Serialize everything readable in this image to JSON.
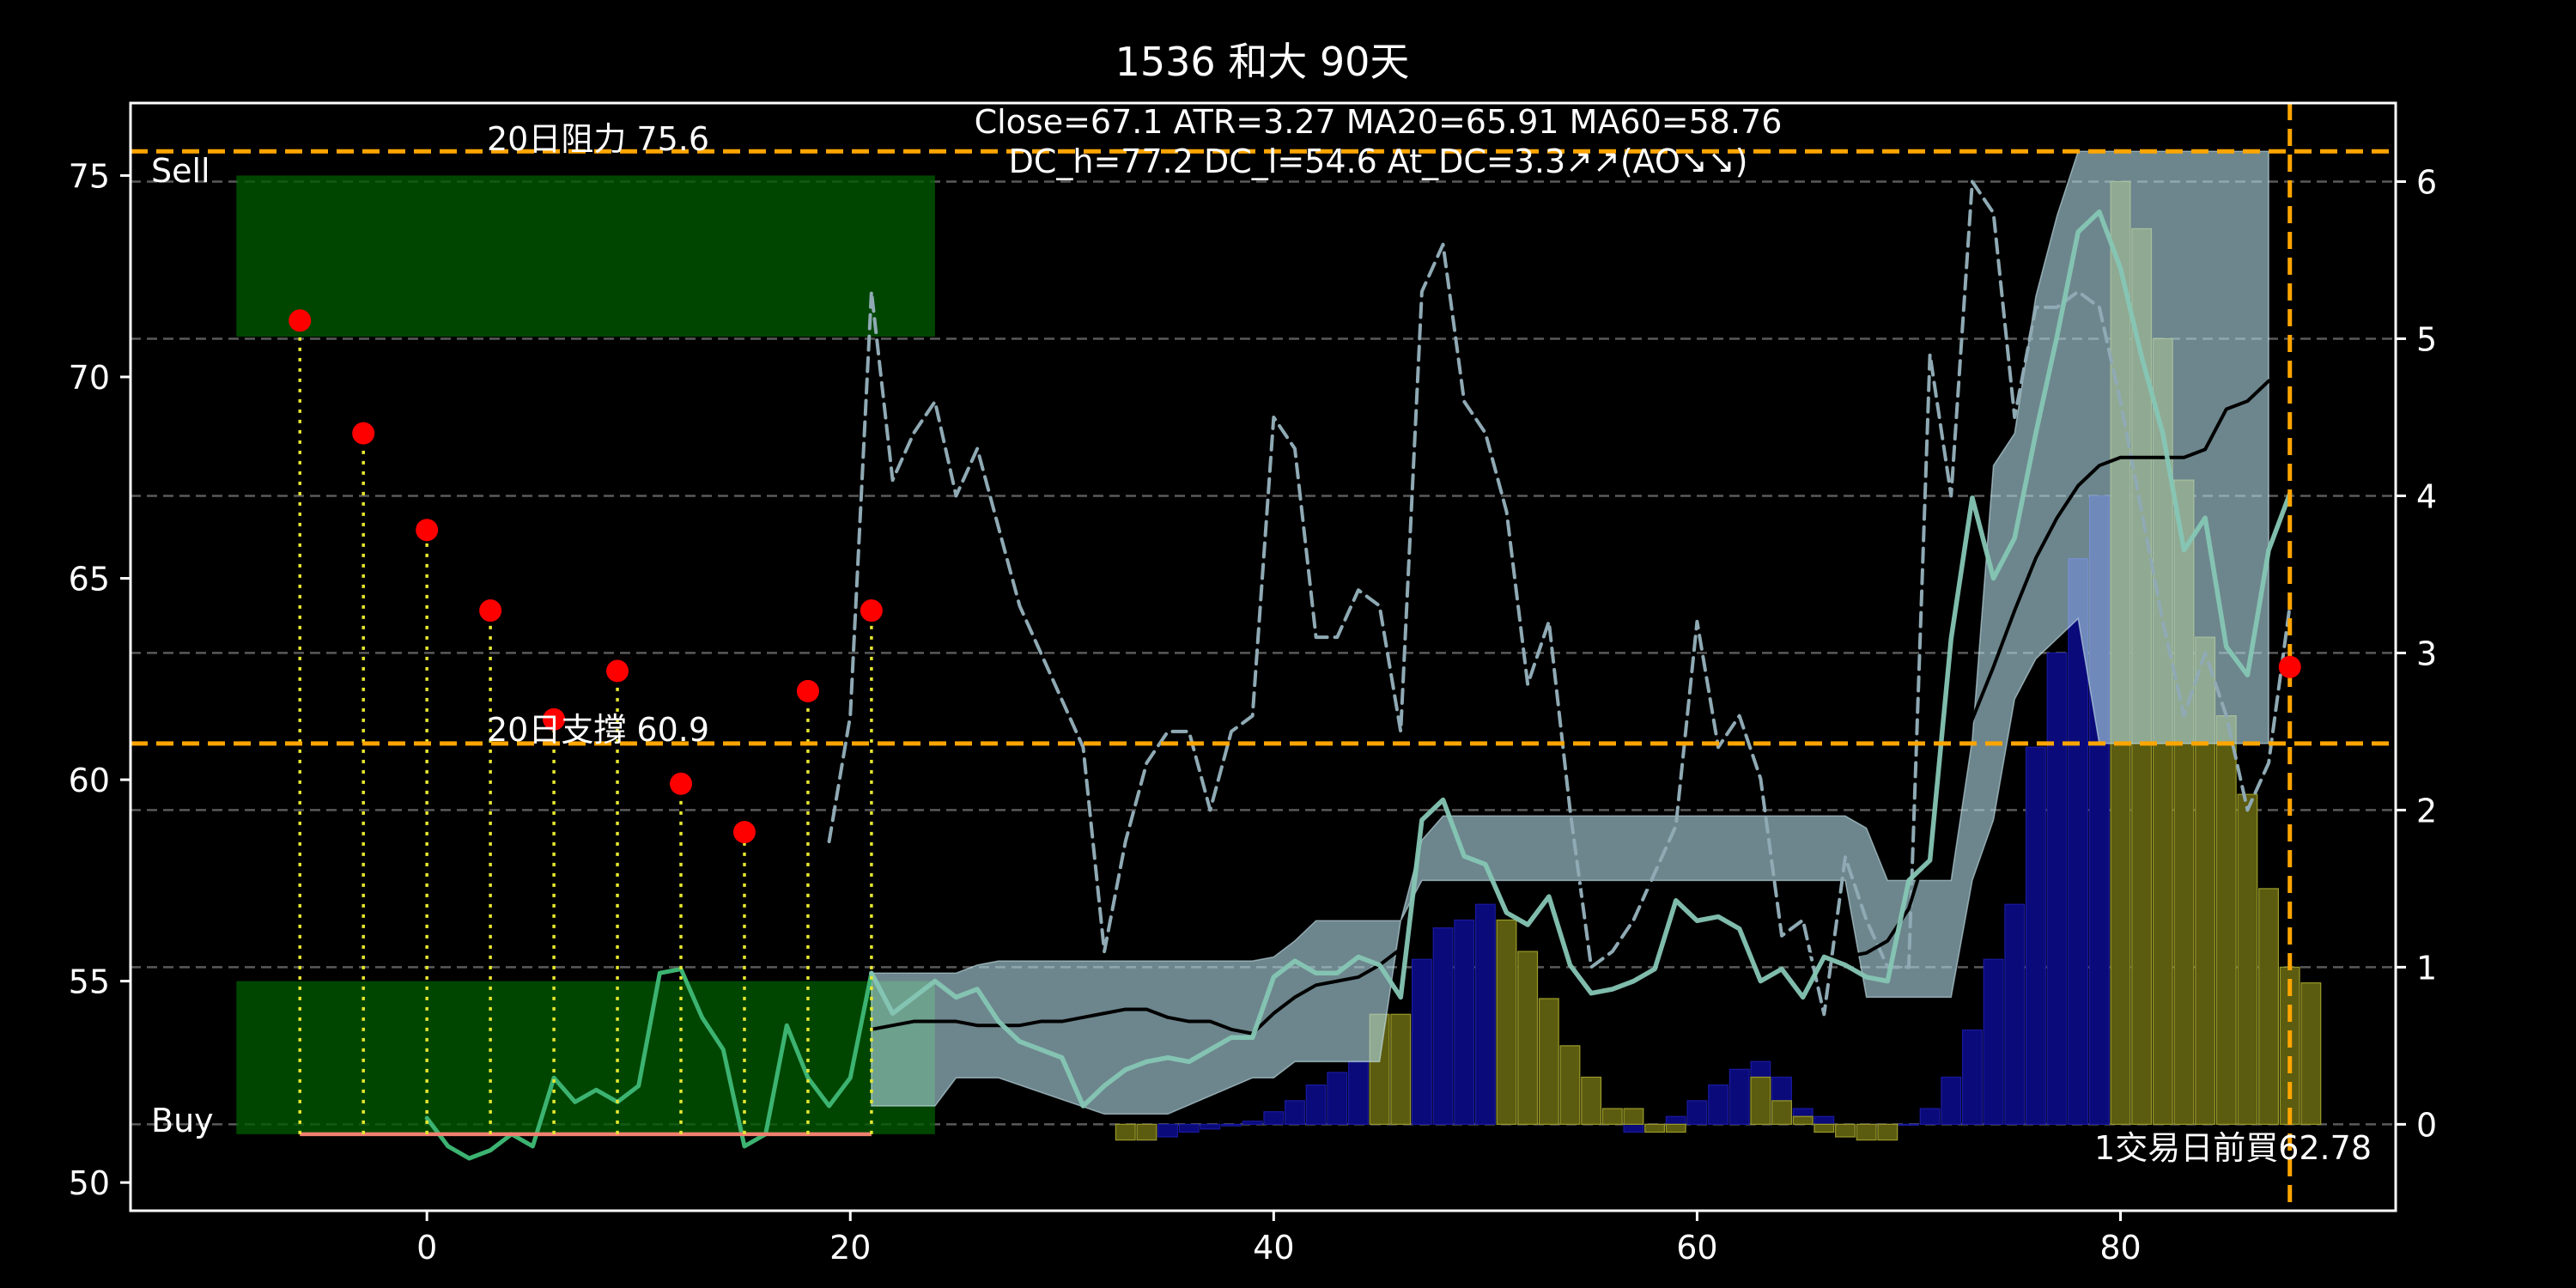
{
  "chart_data": {
    "type": "line",
    "title": "1536 和大 90天",
    "subtitle_lines": [
      "Close=67.1 ATR=3.27 MA20=65.91 MA60=58.76",
      "DC_h=77.2 DC_l=54.6 At_DC=3.3↗↗(AO↘↘)"
    ],
    "xlim": [
      -14,
      93
    ],
    "ylim_left": [
      49.3,
      76.8
    ],
    "ylim_right": [
      -0.55,
      6.5
    ],
    "x_ticks": [
      0,
      20,
      40,
      60,
      80
    ],
    "y_ticks_left": [
      50,
      55,
      60,
      65,
      70,
      75
    ],
    "y_ticks_right": [
      0,
      1,
      2,
      3,
      4,
      5,
      6
    ],
    "right_grid": [
      0,
      1,
      2,
      3,
      4,
      5,
      6
    ],
    "sell_zone": {
      "label": "Sell",
      "x": [
        -9,
        24
      ],
      "y": [
        71,
        75
      ]
    },
    "buy_zone": {
      "label": "Buy",
      "x": [
        -9,
        24
      ],
      "y": [
        51.2,
        55
      ]
    },
    "resistance": {
      "value": 75.6,
      "label": "20日阻力 75.6"
    },
    "support": {
      "value": 60.9,
      "label": "20日支撐 60.9"
    },
    "current_x": 88,
    "last_point": {
      "x": 88,
      "y": 62.8
    },
    "footnote": "1交易日前買62.78",
    "stems_base": 51.2,
    "stems_color": "#e8e830",
    "stems": [
      [
        -6,
        71.4
      ],
      [
        -3,
        68.6
      ],
      [
        0,
        66.2
      ],
      [
        3,
        64.2
      ],
      [
        6,
        61.5
      ],
      [
        9,
        62.7
      ],
      [
        12,
        59.9
      ],
      [
        15,
        58.7
      ],
      [
        18,
        62.2
      ],
      [
        21,
        64.2
      ]
    ],
    "red_base_line": {
      "x": [
        -6,
        21
      ],
      "y": 51.2,
      "color": "#f08070"
    },
    "green_line": {
      "color": "#3cb371",
      "points": [
        [
          0,
          51.6
        ],
        [
          1,
          50.9
        ],
        [
          2,
          50.6
        ],
        [
          3,
          50.8
        ],
        [
          4,
          51.2
        ],
        [
          5,
          50.9
        ],
        [
          6,
          52.6
        ],
        [
          7,
          52.0
        ],
        [
          8,
          52.3
        ],
        [
          9,
          52.0
        ],
        [
          10,
          52.4
        ],
        [
          11,
          55.2
        ],
        [
          12,
          55.3
        ],
        [
          13,
          54.1
        ],
        [
          14,
          53.3
        ],
        [
          15,
          50.9
        ],
        [
          16,
          51.2
        ],
        [
          17,
          53.9
        ],
        [
          18,
          52.6
        ],
        [
          19,
          51.9
        ],
        [
          20,
          52.6
        ],
        [
          21,
          55.2
        ]
      ]
    },
    "dc_band": {
      "color": "#b0d8e4",
      "alpha": 0.62,
      "points": [
        [
          21,
          55.2,
          51.9
        ],
        [
          22,
          55.2,
          51.9
        ],
        [
          24,
          55.2,
          51.9
        ],
        [
          25,
          55.2,
          52.6
        ],
        [
          26,
          55.4,
          52.6
        ],
        [
          27,
          55.5,
          52.6
        ],
        [
          32,
          55.5,
          51.7
        ],
        [
          35,
          55.5,
          51.7
        ],
        [
          39,
          55.5,
          52.6
        ],
        [
          40,
          55.6,
          52.6
        ],
        [
          41,
          56.0,
          53.0
        ],
        [
          42,
          56.5,
          53.0
        ],
        [
          45,
          56.5,
          53.0
        ],
        [
          46,
          56.5,
          56.5
        ],
        [
          47,
          58.5,
          57.5
        ],
        [
          48,
          59.1,
          57.5
        ],
        [
          55,
          59.1,
          57.5
        ],
        [
          67,
          59.1,
          57.5
        ],
        [
          68,
          58.8,
          54.6
        ],
        [
          69,
          57.5,
          54.6
        ],
        [
          72,
          57.5,
          54.6
        ],
        [
          73,
          61.0,
          57.5
        ],
        [
          74,
          67.8,
          59.0
        ],
        [
          75,
          68.6,
          62.0
        ],
        [
          76,
          72.0,
          63.0
        ],
        [
          77,
          74.0,
          63.5
        ],
        [
          78,
          75.6,
          64.0
        ],
        [
          79,
          75.6,
          60.9
        ],
        [
          86,
          75.6,
          60.9
        ],
        [
          87,
          75.6,
          60.9
        ]
      ]
    },
    "ma_line": {
      "color": "#000000",
      "points": [
        [
          21,
          53.8
        ],
        [
          22,
          53.9
        ],
        [
          23,
          54.0
        ],
        [
          24,
          54.0
        ],
        [
          25,
          54.0
        ],
        [
          26,
          53.9
        ],
        [
          27,
          53.9
        ],
        [
          28,
          53.9
        ],
        [
          29,
          54.0
        ],
        [
          30,
          54.0
        ],
        [
          31,
          54.1
        ],
        [
          32,
          54.2
        ],
        [
          33,
          54.3
        ],
        [
          34,
          54.3
        ],
        [
          35,
          54.1
        ],
        [
          36,
          54.0
        ],
        [
          37,
          54.0
        ],
        [
          38,
          53.8
        ],
        [
          39,
          53.7
        ],
        [
          40,
          54.2
        ],
        [
          41,
          54.6
        ],
        [
          42,
          54.9
        ],
        [
          43,
          55.0
        ],
        [
          44,
          55.1
        ],
        [
          45,
          55.4
        ],
        [
          46,
          55.8
        ],
        [
          47,
          56.6
        ],
        [
          48,
          56.9
        ],
        [
          49,
          57.0
        ],
        [
          50,
          57.1
        ],
        [
          51,
          57.1
        ],
        [
          52,
          57.1
        ],
        [
          53,
          57.2
        ],
        [
          54,
          57.3
        ],
        [
          55,
          57.4
        ],
        [
          56,
          57.4
        ],
        [
          57,
          57.4
        ],
        [
          58,
          57.3
        ],
        [
          59,
          57.3
        ],
        [
          60,
          57.2
        ],
        [
          61,
          56.9
        ],
        [
          62,
          56.2
        ],
        [
          63,
          55.8
        ],
        [
          64,
          55.8
        ],
        [
          65,
          55.7
        ],
        [
          66,
          55.6
        ],
        [
          67,
          55.6
        ],
        [
          68,
          55.7
        ],
        [
          69,
          56.0
        ],
        [
          70,
          56.8
        ],
        [
          71,
          58.5
        ],
        [
          72,
          60.0
        ],
        [
          73,
          61.5
        ],
        [
          74,
          62.8
        ],
        [
          75,
          64.2
        ],
        [
          76,
          65.5
        ],
        [
          77,
          66.5
        ],
        [
          78,
          67.3
        ],
        [
          79,
          67.8
        ],
        [
          80,
          68.0
        ],
        [
          81,
          68.0
        ],
        [
          82,
          68.0
        ],
        [
          83,
          68.0
        ],
        [
          84,
          68.2
        ],
        [
          85,
          69.2
        ],
        [
          86,
          69.4
        ],
        [
          87,
          69.9
        ]
      ]
    },
    "teal_line": {
      "color": "#86c6b4",
      "points": [
        [
          21,
          55.2
        ],
        [
          22,
          54.2
        ],
        [
          23,
          54.6
        ],
        [
          24,
          55.0
        ],
        [
          25,
          54.6
        ],
        [
          26,
          54.8
        ],
        [
          27,
          54.0
        ],
        [
          28,
          53.5
        ],
        [
          29,
          53.3
        ],
        [
          30,
          53.1
        ],
        [
          31,
          51.9
        ],
        [
          32,
          52.4
        ],
        [
          33,
          52.8
        ],
        [
          34,
          53.0
        ],
        [
          35,
          53.1
        ],
        [
          36,
          53.0
        ],
        [
          37,
          53.3
        ],
        [
          38,
          53.6
        ],
        [
          39,
          53.6
        ],
        [
          40,
          55.1
        ],
        [
          41,
          55.5
        ],
        [
          42,
          55.2
        ],
        [
          43,
          55.2
        ],
        [
          44,
          55.6
        ],
        [
          45,
          55.4
        ],
        [
          46,
          54.6
        ],
        [
          47,
          59.0
        ],
        [
          48,
          59.5
        ],
        [
          49,
          58.1
        ],
        [
          50,
          57.9
        ],
        [
          51,
          56.7
        ],
        [
          52,
          56.4
        ],
        [
          53,
          57.1
        ],
        [
          54,
          55.4
        ],
        [
          55,
          54.7
        ],
        [
          56,
          54.8
        ],
        [
          57,
          55.0
        ],
        [
          58,
          55.3
        ],
        [
          59,
          57.0
        ],
        [
          60,
          56.5
        ],
        [
          61,
          56.6
        ],
        [
          62,
          56.3
        ],
        [
          63,
          55.0
        ],
        [
          64,
          55.3
        ],
        [
          65,
          54.6
        ],
        [
          66,
          55.6
        ],
        [
          67,
          55.4
        ],
        [
          68,
          55.1
        ],
        [
          69,
          55.0
        ],
        [
          70,
          57.5
        ],
        [
          71,
          58.0
        ],
        [
          72,
          63.5
        ],
        [
          73,
          67.0
        ],
        [
          74,
          65.0
        ],
        [
          75,
          66.0
        ],
        [
          76,
          68.6
        ],
        [
          77,
          71.0
        ],
        [
          78,
          73.6
        ],
        [
          79,
          74.1
        ],
        [
          80,
          72.7
        ],
        [
          81,
          70.5
        ],
        [
          82,
          68.6
        ],
        [
          83,
          65.7
        ],
        [
          84,
          66.5
        ],
        [
          85,
          63.3
        ],
        [
          86,
          62.6
        ],
        [
          87,
          65.7
        ],
        [
          88,
          67.1
        ]
      ]
    },
    "dashed_line": {
      "color": "#8faab4",
      "axis": "right",
      "points": [
        [
          19,
          1.8
        ],
        [
          20,
          2.6
        ],
        [
          21,
          5.3
        ],
        [
          22,
          4.1
        ],
        [
          23,
          4.4
        ],
        [
          24,
          4.6
        ],
        [
          25,
          4.0
        ],
        [
          26,
          4.3
        ],
        [
          27,
          3.8
        ],
        [
          28,
          3.3
        ],
        [
          29,
          3.0
        ],
        [
          30,
          2.7
        ],
        [
          31,
          2.4
        ],
        [
          32,
          1.1
        ],
        [
          33,
          1.8
        ],
        [
          34,
          2.3
        ],
        [
          35,
          2.5
        ],
        [
          36,
          2.5
        ],
        [
          37,
          2.0
        ],
        [
          38,
          2.5
        ],
        [
          39,
          2.6
        ],
        [
          40,
          4.5
        ],
        [
          41,
          4.3
        ],
        [
          42,
          3.1
        ],
        [
          43,
          3.1
        ],
        [
          44,
          3.4
        ],
        [
          45,
          3.3
        ],
        [
          46,
          2.5
        ],
        [
          47,
          5.3
        ],
        [
          48,
          5.6
        ],
        [
          49,
          4.6
        ],
        [
          50,
          4.4
        ],
        [
          51,
          3.9
        ],
        [
          52,
          2.8
        ],
        [
          53,
          3.2
        ],
        [
          54,
          2.0
        ],
        [
          55,
          1.0
        ],
        [
          56,
          1.1
        ],
        [
          57,
          1.3
        ],
        [
          58,
          1.6
        ],
        [
          59,
          1.9
        ],
        [
          60,
          3.2
        ],
        [
          61,
          2.4
        ],
        [
          62,
          2.6
        ],
        [
          63,
          2.2
        ],
        [
          64,
          1.2
        ],
        [
          65,
          1.3
        ],
        [
          66,
          0.7
        ],
        [
          67,
          1.7
        ],
        [
          68,
          1.3
        ],
        [
          69,
          1.0
        ],
        [
          70,
          1.0
        ],
        [
          71,
          4.9
        ],
        [
          72,
          4.0
        ],
        [
          73,
          6.0
        ],
        [
          74,
          5.8
        ],
        [
          75,
          4.5
        ],
        [
          76,
          5.2
        ],
        [
          77,
          5.2
        ],
        [
          78,
          5.3
        ],
        [
          79,
          5.2
        ],
        [
          80,
          4.6
        ],
        [
          81,
          3.9
        ],
        [
          82,
          3.2
        ],
        [
          83,
          2.6
        ],
        [
          84,
          3.0
        ],
        [
          85,
          2.6
        ],
        [
          86,
          2.0
        ],
        [
          87,
          2.3
        ],
        [
          88,
          3.3
        ]
      ]
    },
    "blue_bars": {
      "color": "#0a0a7a",
      "values": [
        [
          34,
          -0.1
        ],
        [
          35,
          -0.08
        ],
        [
          36,
          -0.05
        ],
        [
          37,
          -0.03
        ],
        [
          38,
          -0.01
        ],
        [
          39,
          0.02
        ],
        [
          40,
          0.08
        ],
        [
          41,
          0.15
        ],
        [
          42,
          0.25
        ],
        [
          43,
          0.33
        ],
        [
          44,
          0.4
        ],
        [
          45,
          0.5
        ],
        [
          46,
          0.6
        ],
        [
          47,
          1.05
        ],
        [
          48,
          1.25
        ],
        [
          49,
          1.3
        ],
        [
          50,
          1.4
        ],
        [
          51,
          1.2
        ],
        [
          57,
          -0.05
        ],
        [
          58,
          0.0
        ],
        [
          59,
          0.05
        ],
        [
          60,
          0.15
        ],
        [
          61,
          0.25
        ],
        [
          62,
          0.35
        ],
        [
          63,
          0.4
        ],
        [
          64,
          0.3
        ],
        [
          65,
          0.1
        ],
        [
          66,
          0.05
        ],
        [
          67,
          0.0
        ],
        [
          68,
          -0.02
        ],
        [
          69,
          -0.05
        ],
        [
          70,
          0.0
        ],
        [
          71,
          0.1
        ],
        [
          72,
          0.3
        ],
        [
          73,
          0.6
        ],
        [
          74,
          1.05
        ],
        [
          75,
          1.4
        ],
        [
          76,
          2.4
        ],
        [
          77,
          3.0
        ],
        [
          78,
          3.6
        ],
        [
          79,
          4.0
        ],
        [
          80,
          4.7
        ]
      ]
    },
    "yellow_bars": {
      "color": "#5c5c10",
      "values": [
        [
          33,
          -0.1
        ],
        [
          34,
          -0.1
        ],
        [
          45,
          0.7
        ],
        [
          46,
          0.7
        ],
        [
          51,
          1.3
        ],
        [
          52,
          1.1
        ],
        [
          53,
          0.8
        ],
        [
          54,
          0.5
        ],
        [
          55,
          0.3
        ],
        [
          56,
          0.1
        ],
        [
          57,
          0.1
        ],
        [
          58,
          -0.05
        ],
        [
          59,
          -0.05
        ],
        [
          63,
          0.3
        ],
        [
          64,
          0.15
        ],
        [
          65,
          0.05
        ],
        [
          66,
          -0.05
        ],
        [
          67,
          -0.08
        ],
        [
          68,
          -0.1
        ],
        [
          69,
          -0.1
        ],
        [
          80,
          6.0
        ],
        [
          81,
          5.7
        ],
        [
          82,
          5.0
        ],
        [
          83,
          4.1
        ],
        [
          84,
          3.1
        ],
        [
          85,
          2.6
        ],
        [
          86,
          2.1
        ],
        [
          87,
          1.5
        ],
        [
          88,
          1.0
        ],
        [
          89,
          0.9
        ]
      ]
    }
  }
}
